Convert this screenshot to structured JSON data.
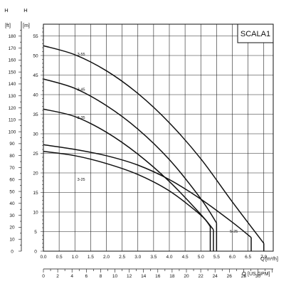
{
  "chart_data": {
    "type": "line",
    "title": "SCALA1",
    "y_left": {
      "label": "H",
      "unit": "[ft]",
      "range": [
        0,
        190
      ],
      "ticks": [
        0,
        10,
        20,
        30,
        40,
        50,
        60,
        70,
        80,
        90,
        100,
        110,
        120,
        130,
        140,
        150,
        160,
        170,
        180
      ]
    },
    "y_right": {
      "label": "H",
      "unit": "[m]",
      "range": [
        0,
        58
      ],
      "ticks": [
        0,
        5,
        10,
        15,
        20,
        25,
        30,
        35,
        40,
        45,
        50,
        55
      ]
    },
    "x": {
      "label": "Q",
      "unit": "[m³/h]",
      "range": [
        0,
        7.3
      ],
      "ticks": [
        "0.0",
        "0.5",
        "1.0",
        "1.5",
        "2.0",
        "2.5",
        "3.0",
        "3.5",
        "4.0",
        "4.5",
        "5.0",
        "5.5",
        "6.0",
        "6.5",
        "7.0"
      ]
    },
    "x_secondary": {
      "label": "Q",
      "unit": "[US GPM]",
      "ticks": [
        0,
        2,
        4,
        6,
        8,
        10,
        12,
        14,
        16,
        18,
        20,
        22,
        24,
        26,
        28,
        30
      ]
    },
    "grid": true,
    "series": [
      {
        "name": "3-55",
        "drop_q": 7.0,
        "points": [
          [
            0,
            52.5
          ],
          [
            1,
            50.2
          ],
          [
            2,
            46.1
          ],
          [
            3,
            40.3
          ],
          [
            4,
            32.8
          ],
          [
            5,
            23.6
          ],
          [
            6,
            12.6
          ],
          [
            7,
            2.0
          ]
        ]
      },
      {
        "name": "3-45",
        "drop_q": 5.5,
        "points": [
          [
            0,
            44.0
          ],
          [
            1,
            41.6
          ],
          [
            2,
            37.2
          ],
          [
            3,
            31.2
          ],
          [
            4,
            23.4
          ],
          [
            5,
            13.4
          ],
          [
            5.5,
            7.2
          ]
        ]
      },
      {
        "name": "3-35",
        "drop_q": 5.4,
        "points": [
          [
            0,
            36.3
          ],
          [
            1,
            34.4
          ],
          [
            2,
            30.4
          ],
          [
            3,
            24.8
          ],
          [
            4,
            17.8
          ],
          [
            5,
            9.4
          ],
          [
            5.4,
            5.5
          ]
        ]
      },
      {
        "name": "3-25",
        "drop_q": 5.3,
        "points": [
          [
            0,
            25.5
          ],
          [
            1,
            24.4
          ],
          [
            2,
            22.4
          ],
          [
            3,
            19.6
          ],
          [
            4,
            15.4
          ],
          [
            5,
            9.2
          ],
          [
            5.3,
            6.3
          ]
        ]
      },
      {
        "name": "5-25",
        "drop_q": 6.6,
        "points": [
          [
            0,
            27.2
          ],
          [
            1,
            26.0
          ],
          [
            2,
            24.4
          ],
          [
            3,
            22.0
          ],
          [
            4,
            18.3
          ],
          [
            5,
            13.3
          ],
          [
            6,
            7.4
          ],
          [
            6.6,
            3.5
          ]
        ]
      }
    ]
  }
}
